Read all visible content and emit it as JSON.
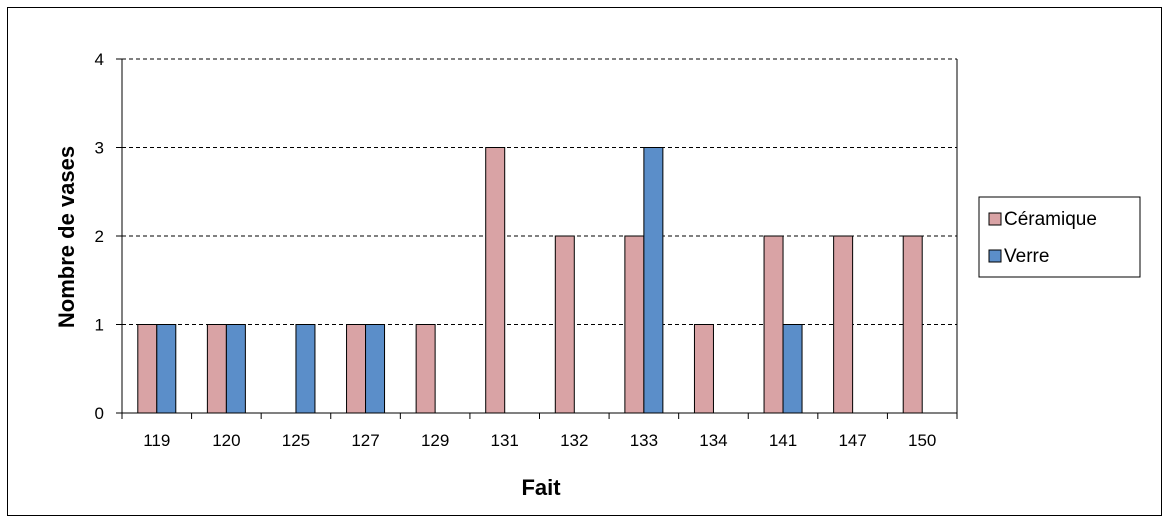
{
  "chart_data": {
    "type": "bar",
    "title": "",
    "xlabel": "Fait",
    "ylabel": "Nombre de vases",
    "categories": [
      "119",
      "120",
      "125",
      "127",
      "129",
      "131",
      "132",
      "133",
      "134",
      "141",
      "147",
      "150"
    ],
    "series": [
      {
        "name": "Céramique",
        "color": "#d9a3a5",
        "values": [
          1,
          1,
          0,
          1,
          1,
          3,
          2,
          2,
          1,
          2,
          2,
          2
        ]
      },
      {
        "name": "Verre",
        "color": "#5b8ec9",
        "values": [
          1,
          1,
          1,
          1,
          0,
          0,
          0,
          3,
          0,
          1,
          0,
          0
        ]
      }
    ],
    "ylim": [
      0,
      4
    ],
    "yticks": [
      0,
      1,
      2,
      3,
      4
    ],
    "grid": "horizontal dashed",
    "legend_position": "right"
  }
}
